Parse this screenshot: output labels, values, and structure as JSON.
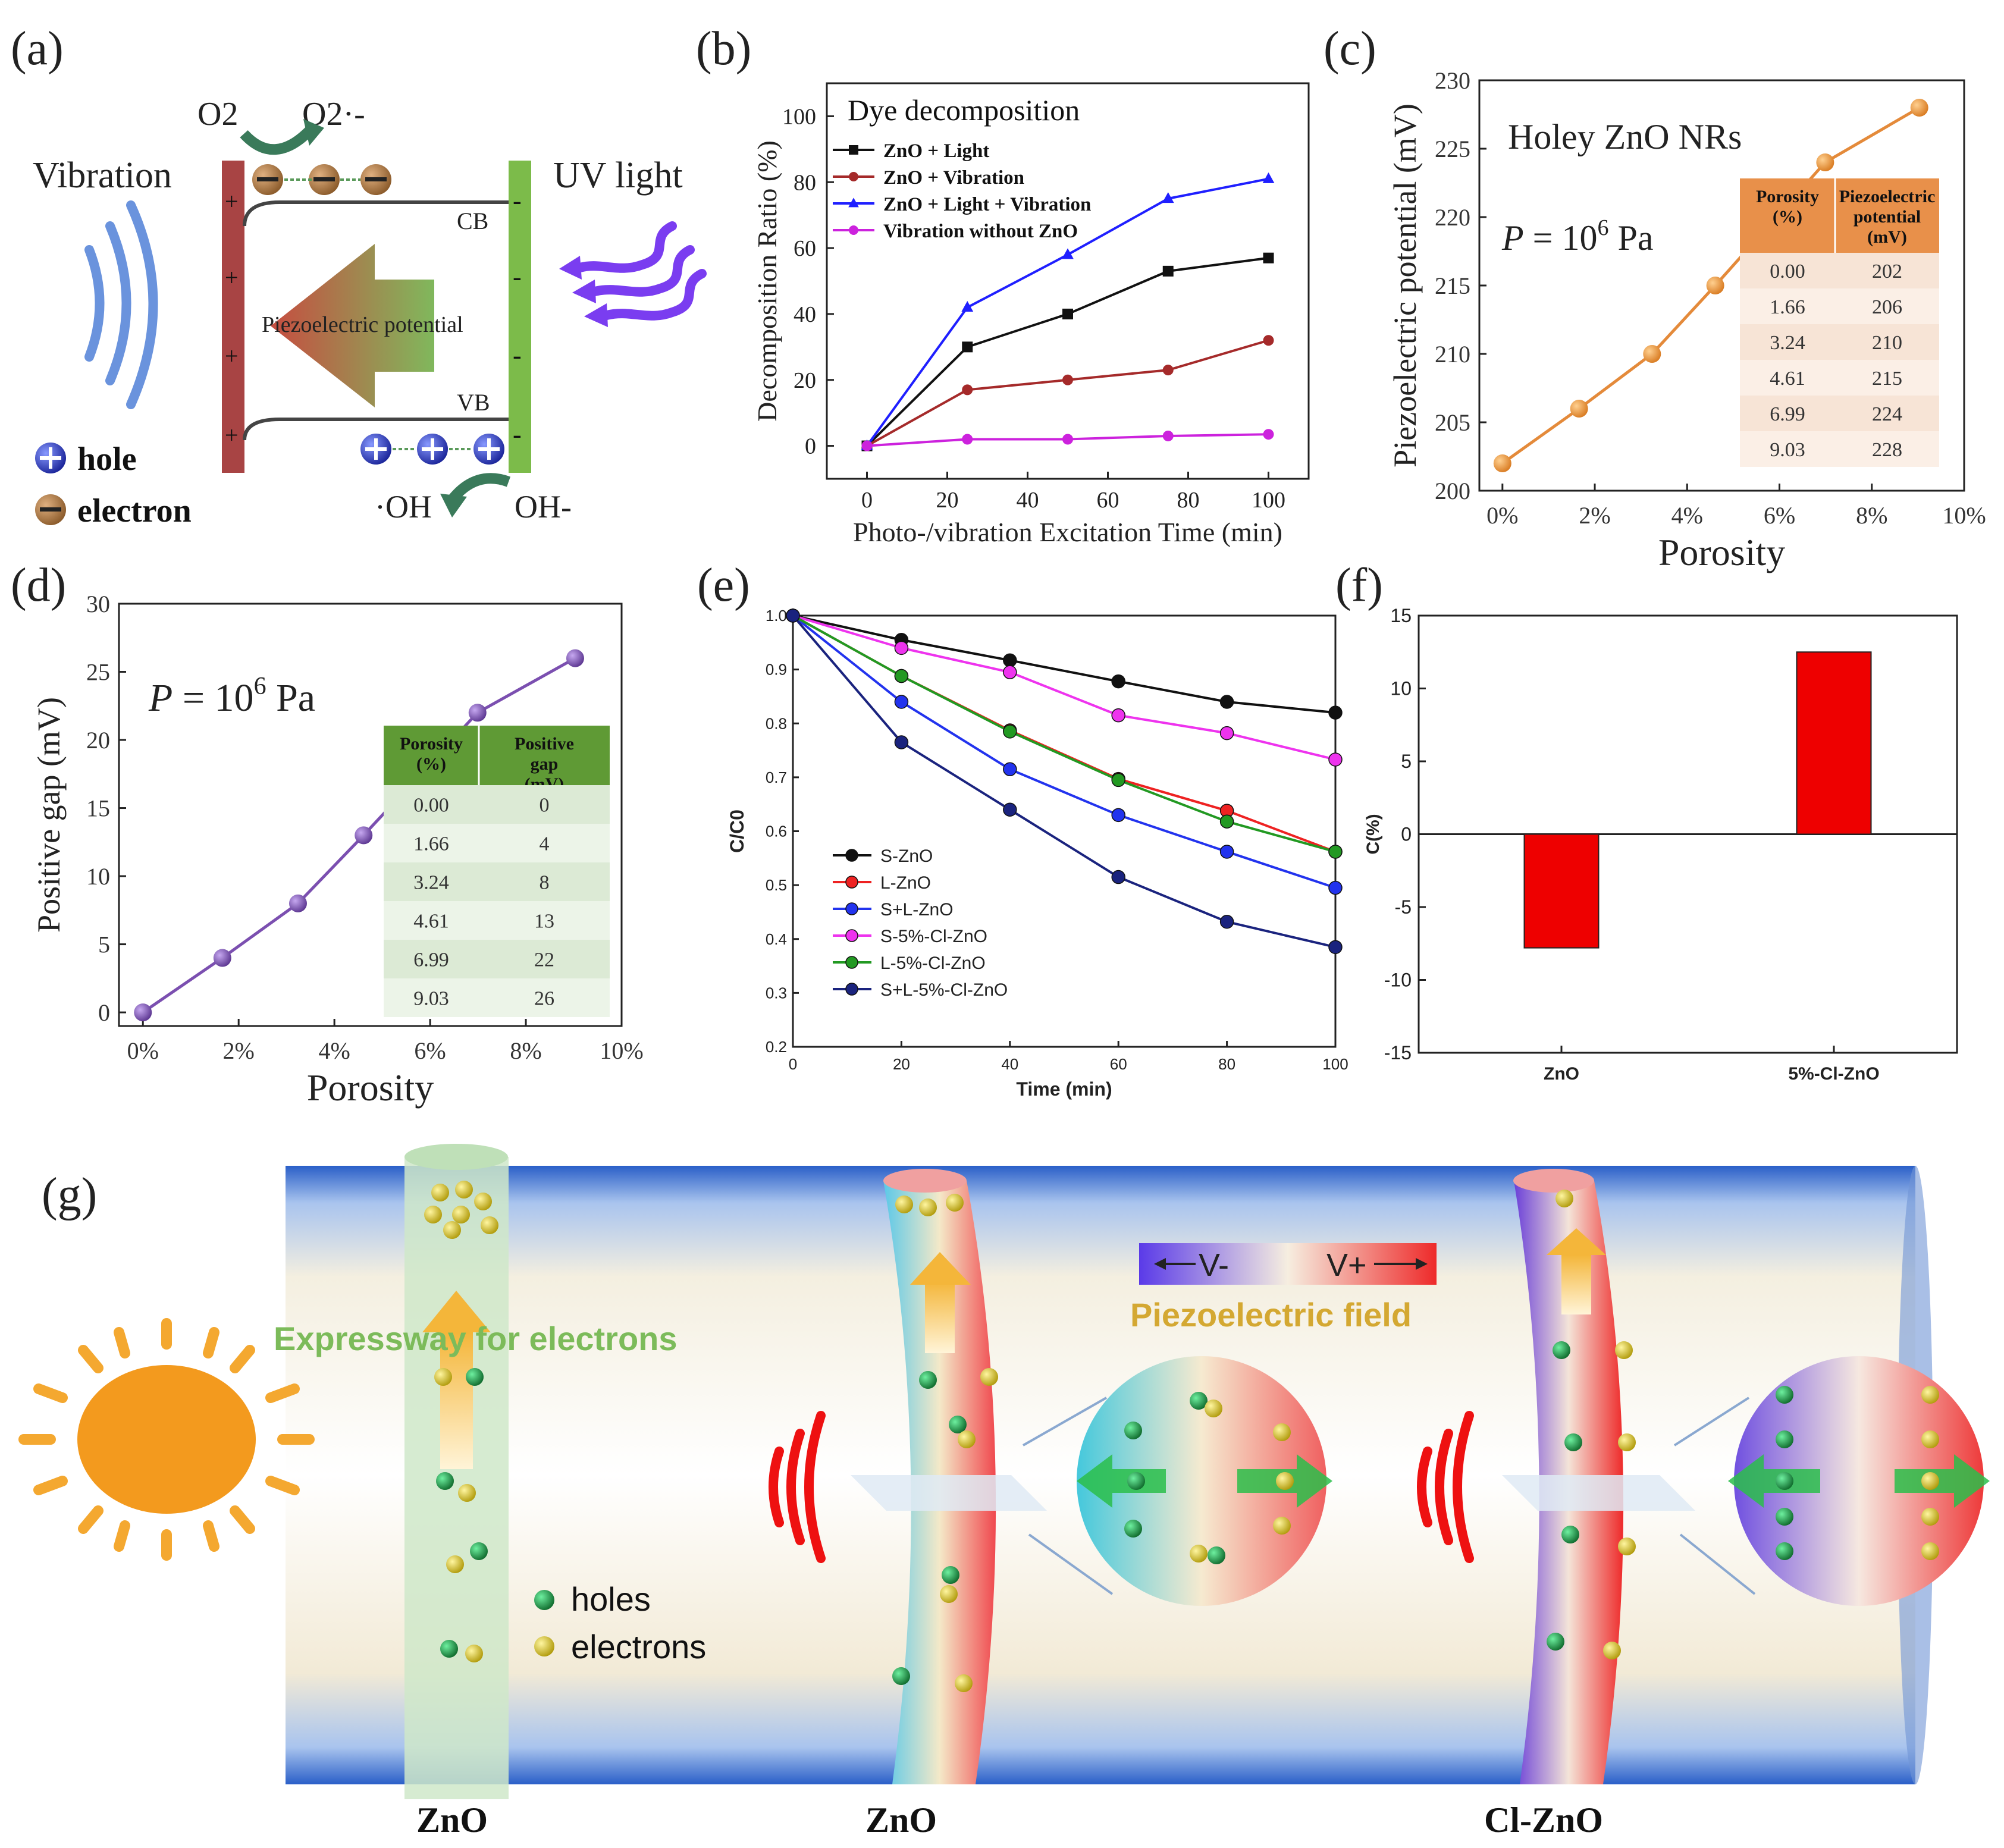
{
  "panel_labels": {
    "a": "(a)",
    "b": "(b)",
    "c": "(c)",
    "d": "(d)",
    "e": "(e)",
    "f": "(f)",
    "g": "(g)"
  },
  "panel_a": {
    "vibration": "Vibration",
    "uv_light": "UV light",
    "o2": "O2",
    "o2_radical": "O2·-",
    "cb": "CB",
    "vb": "VB",
    "piezo": "Piezoelectric potential",
    "oh_radical": "·OH",
    "oh_minus": "OH-",
    "legend_hole": "hole",
    "legend_electron": "electron",
    "plus": "+",
    "minus": "-",
    "colors": {
      "left_bar": "#a84444",
      "right_bar": "#7cbb4a",
      "electron": "#b07a45",
      "hole": "#3344cc",
      "vibration_waves": "#6a93dd",
      "uv_waves": "#7a3df0"
    }
  },
  "chart_data": [
    {
      "id": "b",
      "type": "line",
      "title": "Dye decomposition",
      "xlabel": "Photo-/vibration Excitation Time (min)",
      "ylabel": "Decomposition Ratio (%)",
      "xlim": [
        -10,
        110
      ],
      "ylim": [
        -10,
        110
      ],
      "xticks": [
        0,
        20,
        40,
        60,
        80,
        100
      ],
      "yticks": [
        0,
        20,
        40,
        60,
        80,
        100
      ],
      "x": [
        0,
        25,
        50,
        75,
        100
      ],
      "series": [
        {
          "name": "ZnO + Light",
          "color": "#111111",
          "marker": "square",
          "values": [
            0,
            30,
            40,
            53,
            57
          ]
        },
        {
          "name": "ZnO + Vibration",
          "color": "#a52a2a",
          "marker": "circle",
          "values": [
            0,
            17,
            20,
            23,
            32
          ]
        },
        {
          "name": "ZnO + Light + Vibration",
          "color": "#1f1fff",
          "marker": "triangle",
          "values": [
            0,
            42,
            58,
            75,
            81
          ]
        },
        {
          "name": "Vibration without ZnO",
          "color": "#cc22dd",
          "marker": "circle",
          "values": [
            0,
            2,
            2,
            3,
            3.5
          ]
        }
      ]
    },
    {
      "id": "c",
      "type": "line",
      "title": "Holey ZnO NRs",
      "annotation": "P = 10^6 Pa",
      "xlabel": "Porosity",
      "ylabel": "Piezoelectric potential (mV)",
      "xlim": [
        -0.5,
        10
      ],
      "ylim": [
        200,
        230
      ],
      "xticks": [
        0,
        2,
        4,
        6,
        8,
        10
      ],
      "xtick_labels": [
        "0%",
        "2%",
        "4%",
        "6%",
        "8%",
        "10%"
      ],
      "yticks": [
        200,
        205,
        210,
        215,
        220,
        225,
        230
      ],
      "x": [
        0,
        1.66,
        3.24,
        4.61,
        6.99,
        9.03
      ],
      "values": [
        202,
        206,
        210,
        215,
        224,
        228
      ],
      "color": "#e48a3a",
      "table": {
        "headers": [
          "Porosity (%)",
          "Piezoelectric potential (mV)"
        ],
        "rows": [
          [
            "0.00",
            "202"
          ],
          [
            "1.66",
            "206"
          ],
          [
            "3.24",
            "210"
          ],
          [
            "4.61",
            "215"
          ],
          [
            "6.99",
            "224"
          ],
          [
            "9.03",
            "228"
          ]
        ]
      }
    },
    {
      "id": "d",
      "type": "line",
      "annotation": "P = 10^6 Pa",
      "xlabel": "Porosity",
      "ylabel": "Positive gap (mV)",
      "xlim": [
        -0.5,
        10
      ],
      "ylim": [
        -1,
        30
      ],
      "xticks": [
        0,
        2,
        4,
        6,
        8,
        10
      ],
      "xtick_labels": [
        "0%",
        "2%",
        "4%",
        "6%",
        "8%",
        "10%"
      ],
      "yticks": [
        0,
        5,
        10,
        15,
        20,
        25,
        30
      ],
      "x": [
        0,
        1.66,
        3.24,
        4.61,
        6.99,
        9.03
      ],
      "values": [
        0,
        4,
        8,
        13,
        22,
        26
      ],
      "color": "#7b4fb0",
      "table": {
        "headers": [
          "Porosity (%)",
          "Positive gap (mV)"
        ],
        "rows": [
          [
            "0.00",
            "0"
          ],
          [
            "1.66",
            "4"
          ],
          [
            "3.24",
            "8"
          ],
          [
            "4.61",
            "13"
          ],
          [
            "6.99",
            "22"
          ],
          [
            "9.03",
            "26"
          ]
        ]
      }
    },
    {
      "id": "e",
      "type": "line",
      "xlabel": "Time (min)",
      "ylabel": "C/C0",
      "xlim": [
        0,
        100
      ],
      "ylim": [
        0.2,
        1.0
      ],
      "xticks": [
        0,
        20,
        40,
        60,
        80,
        100
      ],
      "yticks": [
        0.2,
        0.3,
        0.4,
        0.5,
        0.6,
        0.7,
        0.8,
        0.9,
        1.0
      ],
      "x": [
        0,
        20,
        40,
        60,
        80,
        100
      ],
      "series": [
        {
          "name": "S-ZnO",
          "color": "#111111",
          "values": [
            1.0,
            0.955,
            0.917,
            0.878,
            0.84,
            0.82
          ]
        },
        {
          "name": "L-ZnO",
          "color": "#ee2222",
          "values": [
            1.0,
            0.888,
            0.787,
            0.697,
            0.638,
            0.562
          ]
        },
        {
          "name": "S+L-ZnO",
          "color": "#2233ee",
          "values": [
            1.0,
            0.84,
            0.715,
            0.63,
            0.562,
            0.495
          ]
        },
        {
          "name": "S-5%-Cl-ZnO",
          "color": "#ee33ee",
          "values": [
            1.0,
            0.94,
            0.895,
            0.815,
            0.782,
            0.733
          ]
        },
        {
          "name": "L-5%-Cl-ZnO",
          "color": "#229922",
          "values": [
            1.0,
            0.888,
            0.785,
            0.695,
            0.618,
            0.562
          ]
        },
        {
          "name": "S+L-5%-Cl-ZnO",
          "color": "#1a237e",
          "values": [
            1.0,
            0.765,
            0.64,
            0.515,
            0.432,
            0.385
          ]
        }
      ]
    },
    {
      "id": "f",
      "type": "bar",
      "ylabel": "C(%)",
      "categories": [
        "ZnO",
        "5%-Cl-ZnO"
      ],
      "values": [
        -7.8,
        12.5
      ],
      "ylim": [
        -15,
        15
      ],
      "yticks": [
        -15,
        -10,
        -5,
        0,
        5,
        10,
        15
      ],
      "color": "#ee0000"
    }
  ],
  "panel_g": {
    "expressway": "Expressway for electrons",
    "piezo_field": "Piezoelectric field",
    "v_minus": "V-",
    "v_plus": "V+",
    "holes": "holes",
    "electrons": "electrons",
    "labels": [
      "ZnO",
      "ZnO",
      "Cl-ZnO"
    ],
    "colors": {
      "sun": "#f39a1e",
      "hole": "#1a8a3a",
      "electron": "#e6d21e",
      "red_waves": "#ee1111"
    }
  }
}
